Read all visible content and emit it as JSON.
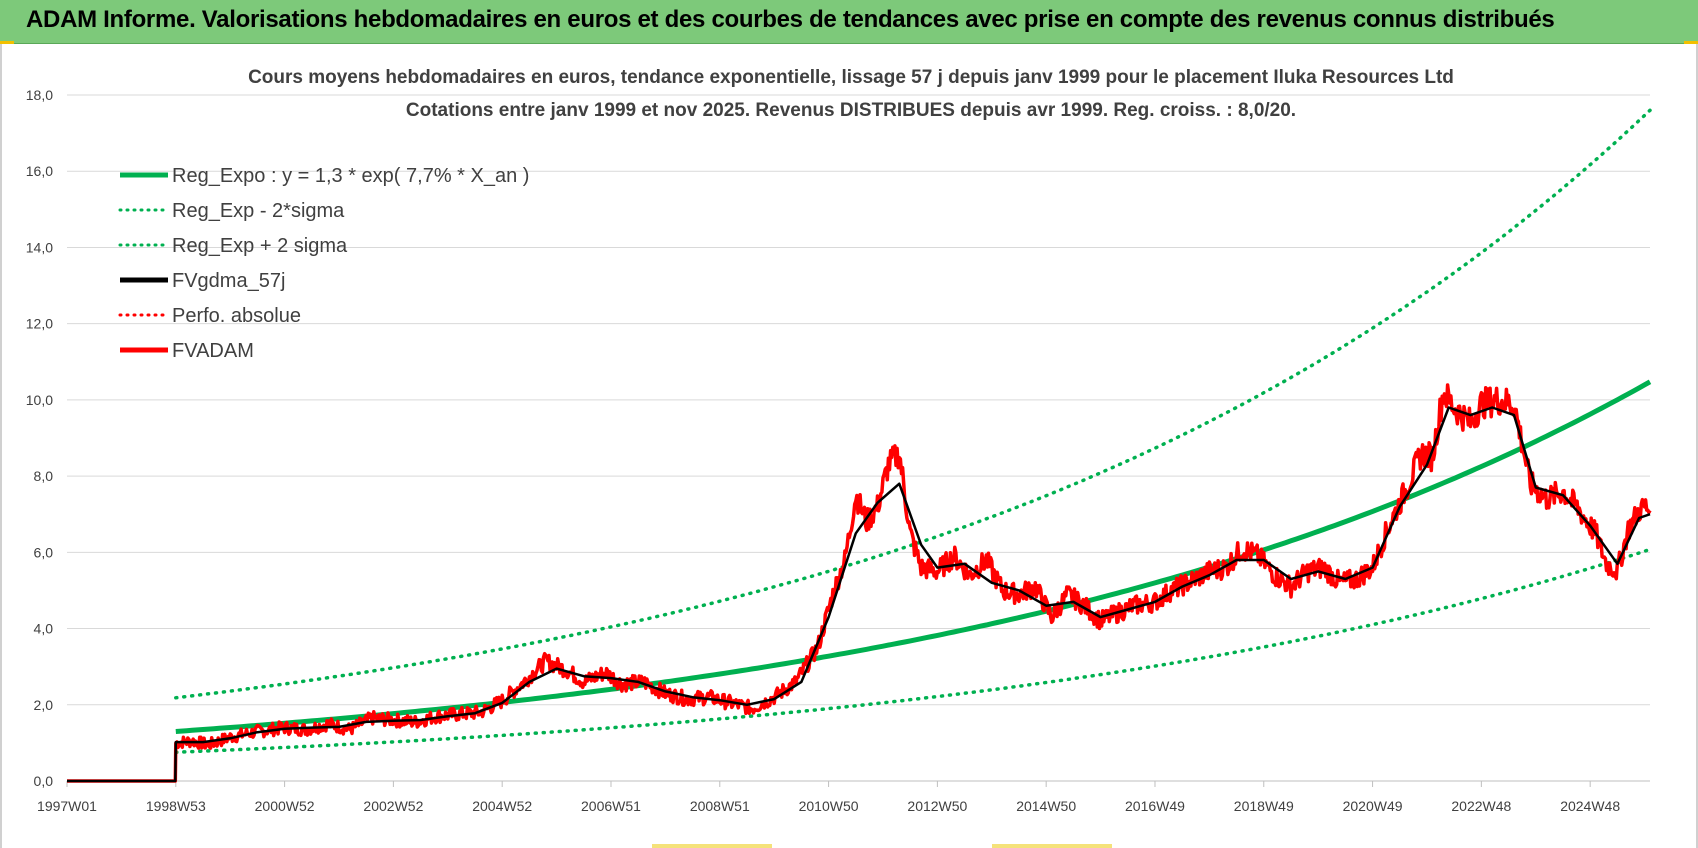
{
  "header": {
    "title": "ADAM Informe. Valorisations hebdomadaires en euros et des courbes de tendances avec prise en compte des revenus connus distribués"
  },
  "colors": {
    "banner": "#7dc97a",
    "reg_green": "#00b050",
    "black": "#000000",
    "red": "#ff0000"
  },
  "chart_data": {
    "type": "line",
    "title": "Cours moyens hebdomadaires en euros, tendance exponentielle, lissage 57 j depuis janv 1999  pour le placement Iluka Resources Ltd",
    "subtitle": "Cotations entre janv 1999 et nov 2025. Revenus DISTRIBUES depuis avr 1999.  Reg. croiss. : 8,0/20.",
    "xlabel": "",
    "ylabel": "",
    "x_range": [
      1997.0,
      2026.1
    ],
    "ylim": [
      0,
      18
    ],
    "y_ticks": [
      "0,0",
      "2,0",
      "4,0",
      "6,0",
      "8,0",
      "10,0",
      "12,0",
      "14,0",
      "16,0",
      "18,0"
    ],
    "x_ticks": [
      {
        "label": "1997W01",
        "x": 1997.0
      },
      {
        "label": "1998W53",
        "x": 1999.0
      },
      {
        "label": "2000W52",
        "x": 2001.0
      },
      {
        "label": "2002W52",
        "x": 2003.0
      },
      {
        "label": "2004W52",
        "x": 2005.0
      },
      {
        "label": "2006W51",
        "x": 2007.0
      },
      {
        "label": "2008W51",
        "x": 2009.0
      },
      {
        "label": "2010W50",
        "x": 2011.0
      },
      {
        "label": "2012W50",
        "x": 2013.0
      },
      {
        "label": "2014W50",
        "x": 2015.0
      },
      {
        "label": "2016W49",
        "x": 2017.0
      },
      {
        "label": "2018W49",
        "x": 2019.0
      },
      {
        "label": "2020W49",
        "x": 2021.0
      },
      {
        "label": "2022W48",
        "x": 2023.0
      },
      {
        "label": "2024W48",
        "x": 2025.0
      }
    ],
    "grid": "horizontal",
    "legend_position": "top-left",
    "regression": {
      "a": 1.3,
      "rate": 0.077,
      "start": 1999.0,
      "sigma_low_factor": 0.58,
      "sigma_high_factor": 1.68
    },
    "series": [
      {
        "name": "Reg_Expo : y = 1,3 * exp( 7,7% *  X_an )",
        "style": "solid",
        "color": "#00b050",
        "width": 5
      },
      {
        "name": "Reg_Exp - 2*sigma",
        "style": "dotted",
        "color": "#00b050",
        "width": 3.5
      },
      {
        "name": "Reg_Exp + 2 sigma",
        "style": "dotted",
        "color": "#00b050",
        "width": 3.5
      },
      {
        "name": "FVgdma_57j",
        "style": "solid",
        "color": "#000000",
        "width": 2.5
      },
      {
        "name": "Perfo. absolue",
        "style": "dotted",
        "color": "#ff0000",
        "width": 2.5
      },
      {
        "name": "FVADAM",
        "style": "solid",
        "color": "#ff0000",
        "width": 3.5
      }
    ],
    "fvadam_points": [
      [
        1997.0,
        0.0
      ],
      [
        1998.99,
        0.0
      ],
      [
        1999.0,
        1.0
      ],
      [
        1999.3,
        1.05
      ],
      [
        1999.6,
        0.95
      ],
      [
        2000.0,
        1.15
      ],
      [
        2000.5,
        1.3
      ],
      [
        2001.0,
        1.4
      ],
      [
        2001.4,
        1.35
      ],
      [
        2001.8,
        1.5
      ],
      [
        2002.2,
        1.35
      ],
      [
        2002.6,
        1.65
      ],
      [
        2003.0,
        1.6
      ],
      [
        2003.4,
        1.55
      ],
      [
        2003.8,
        1.7
      ],
      [
        2004.2,
        1.75
      ],
      [
        2004.6,
        1.8
      ],
      [
        2005.0,
        2.1
      ],
      [
        2005.4,
        2.6
      ],
      [
        2005.8,
        3.15
      ],
      [
        2006.2,
        2.9
      ],
      [
        2006.5,
        2.6
      ],
      [
        2006.9,
        2.85
      ],
      [
        2007.2,
        2.55
      ],
      [
        2007.6,
        2.6
      ],
      [
        2008.0,
        2.3
      ],
      [
        2008.4,
        2.15
      ],
      [
        2008.8,
        2.2
      ],
      [
        2009.2,
        2.05
      ],
      [
        2009.6,
        1.9
      ],
      [
        2010.0,
        2.2
      ],
      [
        2010.4,
        2.6
      ],
      [
        2010.8,
        3.5
      ],
      [
        2011.1,
        5.0
      ],
      [
        2011.3,
        5.8
      ],
      [
        2011.5,
        7.5
      ],
      [
        2011.7,
        6.8
      ],
      [
        2011.9,
        7.2
      ],
      [
        2012.1,
        8.3
      ],
      [
        2012.3,
        8.6
      ],
      [
        2012.5,
        6.5
      ],
      [
        2012.7,
        5.6
      ],
      [
        2013.0,
        5.5
      ],
      [
        2013.3,
        5.9
      ],
      [
        2013.6,
        5.4
      ],
      [
        2013.9,
        5.8
      ],
      [
        2014.2,
        5.0
      ],
      [
        2014.5,
        4.9
      ],
      [
        2014.8,
        5.1
      ],
      [
        2015.1,
        4.3
      ],
      [
        2015.4,
        4.9
      ],
      [
        2015.7,
        4.6
      ],
      [
        2016.0,
        4.2
      ],
      [
        2016.3,
        4.4
      ],
      [
        2016.6,
        4.6
      ],
      [
        2017.0,
        4.7
      ],
      [
        2017.3,
        5.0
      ],
      [
        2017.6,
        5.2
      ],
      [
        2018.0,
        5.5
      ],
      [
        2018.3,
        5.6
      ],
      [
        2018.6,
        6.1
      ],
      [
        2018.9,
        5.9
      ],
      [
        2019.2,
        5.4
      ],
      [
        2019.5,
        5.1
      ],
      [
        2019.8,
        5.5
      ],
      [
        2020.1,
        5.6
      ],
      [
        2020.4,
        5.2
      ],
      [
        2020.7,
        5.3
      ],
      [
        2021.0,
        5.6
      ],
      [
        2021.3,
        6.7
      ],
      [
        2021.6,
        7.6
      ],
      [
        2021.9,
        8.6
      ],
      [
        2022.1,
        8.5
      ],
      [
        2022.3,
        10.2
      ],
      [
        2022.5,
        9.8
      ],
      [
        2022.8,
        9.4
      ],
      [
        2023.0,
        9.9
      ],
      [
        2023.3,
        10.0
      ],
      [
        2023.6,
        9.9
      ],
      [
        2023.9,
        7.8
      ],
      [
        2024.2,
        7.4
      ],
      [
        2024.5,
        7.6
      ],
      [
        2024.8,
        7.1
      ],
      [
        2025.1,
        6.5
      ],
      [
        2025.3,
        5.7
      ],
      [
        2025.5,
        5.5
      ],
      [
        2025.7,
        6.6
      ],
      [
        2025.9,
        7.1
      ],
      [
        2026.0,
        7.2
      ],
      [
        2026.1,
        7.1
      ]
    ],
    "fvgdma_points": [
      [
        1997.0,
        0.0
      ],
      [
        1998.99,
        0.0
      ],
      [
        1999.0,
        1.02
      ],
      [
        1999.5,
        1.02
      ],
      [
        2000.0,
        1.12
      ],
      [
        2000.5,
        1.28
      ],
      [
        2001.0,
        1.37
      ],
      [
        2001.5,
        1.4
      ],
      [
        2002.0,
        1.42
      ],
      [
        2002.5,
        1.55
      ],
      [
        2003.0,
        1.58
      ],
      [
        2003.5,
        1.6
      ],
      [
        2004.0,
        1.7
      ],
      [
        2004.5,
        1.78
      ],
      [
        2005.0,
        2.05
      ],
      [
        2005.5,
        2.6
      ],
      [
        2006.0,
        2.95
      ],
      [
        2006.5,
        2.75
      ],
      [
        2007.0,
        2.7
      ],
      [
        2007.5,
        2.6
      ],
      [
        2008.0,
        2.35
      ],
      [
        2008.5,
        2.2
      ],
      [
        2009.0,
        2.12
      ],
      [
        2009.5,
        2.0
      ],
      [
        2010.0,
        2.15
      ],
      [
        2010.5,
        2.6
      ],
      [
        2011.0,
        4.3
      ],
      [
        2011.5,
        6.5
      ],
      [
        2011.9,
        7.3
      ],
      [
        2012.3,
        7.8
      ],
      [
        2012.7,
        6.2
      ],
      [
        2013.0,
        5.6
      ],
      [
        2013.5,
        5.7
      ],
      [
        2014.0,
        5.2
      ],
      [
        2014.5,
        5.0
      ],
      [
        2015.0,
        4.6
      ],
      [
        2015.5,
        4.7
      ],
      [
        2016.0,
        4.3
      ],
      [
        2016.5,
        4.5
      ],
      [
        2017.0,
        4.7
      ],
      [
        2017.5,
        5.1
      ],
      [
        2018.0,
        5.4
      ],
      [
        2018.5,
        5.8
      ],
      [
        2019.0,
        5.8
      ],
      [
        2019.5,
        5.3
      ],
      [
        2020.0,
        5.5
      ],
      [
        2020.5,
        5.3
      ],
      [
        2021.0,
        5.6
      ],
      [
        2021.5,
        7.2
      ],
      [
        2022.0,
        8.3
      ],
      [
        2022.4,
        9.8
      ],
      [
        2022.8,
        9.6
      ],
      [
        2023.2,
        9.8
      ],
      [
        2023.6,
        9.6
      ],
      [
        2024.0,
        7.7
      ],
      [
        2024.5,
        7.5
      ],
      [
        2025.0,
        6.7
      ],
      [
        2025.5,
        5.7
      ],
      [
        2025.9,
        6.9
      ],
      [
        2026.1,
        7.0
      ]
    ]
  }
}
